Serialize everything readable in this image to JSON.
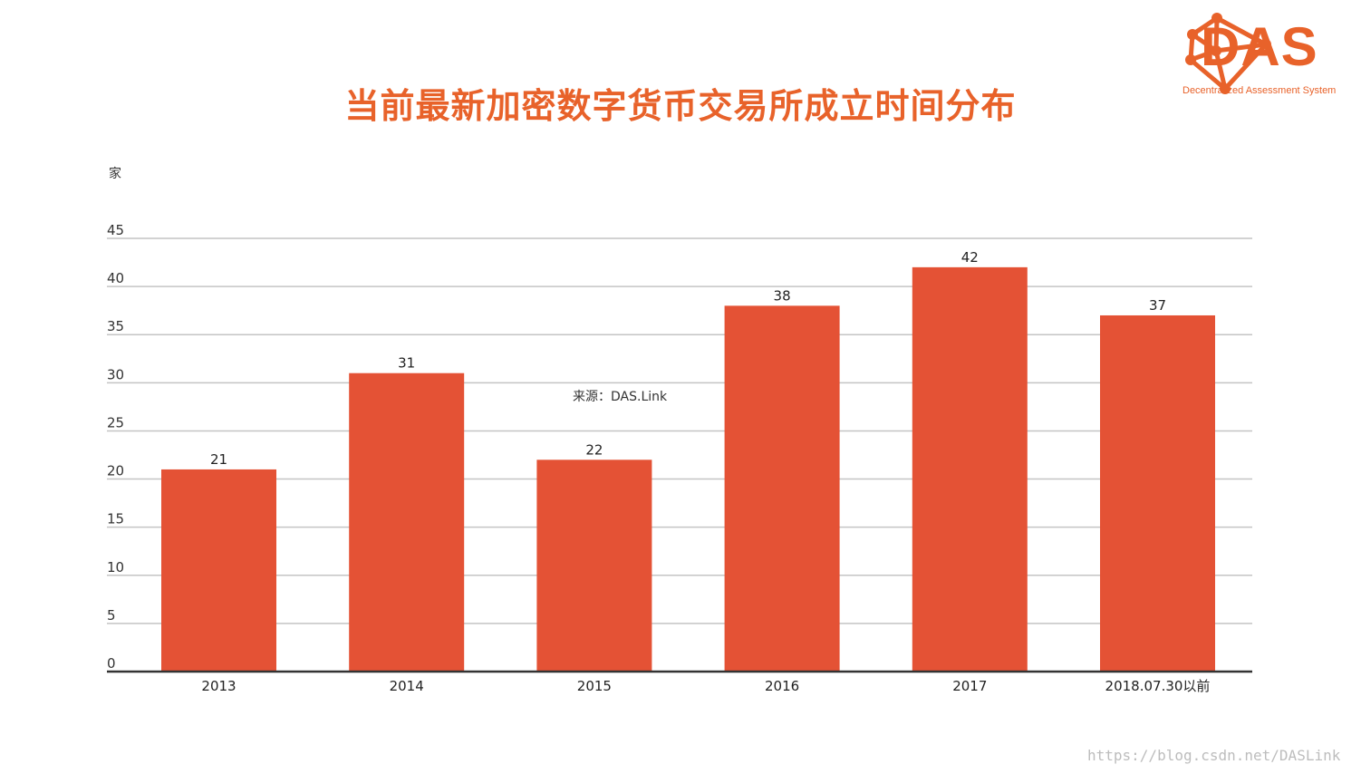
{
  "title": "当前最新加密数字货币交易所成立时间分布",
  "logo": {
    "name": "DAS",
    "subtitle": "Decentralized Assessment System",
    "color": "#e8622a",
    "icon": "network-hexagon-icon"
  },
  "source_note": "来源：DAS.Link",
  "watermark": "https://blog.csdn.net/DASLink",
  "chart_data": {
    "type": "bar",
    "ylabel": "家",
    "xlabel": "",
    "categories": [
      "2013",
      "2014",
      "2015",
      "2016",
      "2017",
      "2018.07.30以前"
    ],
    "values": [
      21,
      31,
      22,
      38,
      42,
      37
    ],
    "ylim": [
      0,
      45
    ],
    "yticks": [
      0,
      5,
      10,
      15,
      20,
      25,
      30,
      35,
      40,
      45
    ],
    "grid": true,
    "legend": "none",
    "bar_color": "#e45235"
  }
}
